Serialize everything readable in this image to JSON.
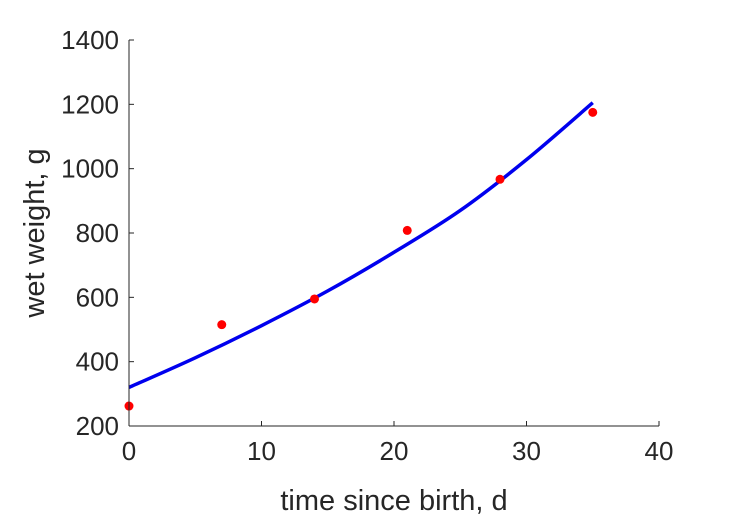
{
  "chart_data": {
    "type": "scatter",
    "title": "",
    "xlabel": "time since birth, d",
    "ylabel": "wet weight, g",
    "xlim": [
      0,
      40
    ],
    "ylim": [
      200,
      1400
    ],
    "xticks": [
      0,
      10,
      20,
      30,
      40
    ],
    "yticks": [
      200,
      400,
      600,
      800,
      1000,
      1200,
      1400
    ],
    "grid": false,
    "box": false,
    "colors": {
      "points": "#ff0000",
      "fit": "#0000ee",
      "axes": "#262626"
    },
    "series": [
      {
        "kind": "scatter",
        "x": [
          0,
          7,
          14,
          21,
          28,
          35
        ],
        "y": [
          262,
          515,
          595,
          808,
          967,
          1175
        ]
      },
      {
        "kind": "line",
        "x": [
          0,
          5,
          10,
          15,
          20,
          25,
          30,
          35
        ],
        "y": [
          320,
          412,
          512,
          620,
          740,
          870,
          1028,
          1205
        ]
      }
    ]
  }
}
